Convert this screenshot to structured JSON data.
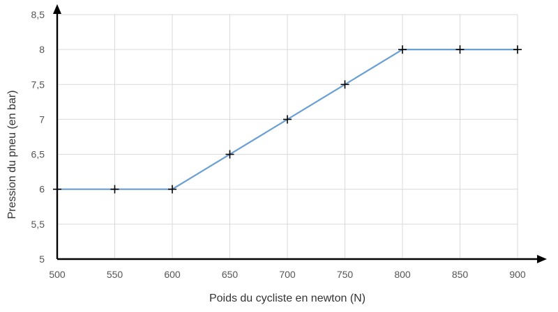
{
  "chart_data": {
    "type": "line",
    "title": "",
    "xlabel": "Poids du cycliste en newton (N)",
    "ylabel": "Pression du pneu (en bar)",
    "xlim": [
      500,
      900
    ],
    "ylim": [
      5,
      8.5
    ],
    "x_ticks": [
      500,
      550,
      600,
      650,
      700,
      750,
      800,
      850,
      900
    ],
    "x_tick_labels": [
      "500",
      "550",
      "600",
      "650",
      "700",
      "750",
      "800",
      "850",
      "900"
    ],
    "y_ticks": [
      5,
      5.5,
      6,
      6.5,
      7,
      7.5,
      8,
      8.5
    ],
    "y_tick_labels": [
      "5",
      "5,5",
      "6",
      "6,5",
      "7",
      "7,5",
      "8",
      "8,5"
    ],
    "grid": true,
    "series": [
      {
        "x": [
          500,
          550,
          600,
          650,
          700,
          750,
          800,
          850,
          900
        ],
        "values": [
          6,
          6,
          6,
          6.5,
          7,
          7.5,
          8,
          8,
          8
        ],
        "color": "#6a9fd4",
        "marker": "plus",
        "marker_color": "#000000"
      }
    ]
  }
}
